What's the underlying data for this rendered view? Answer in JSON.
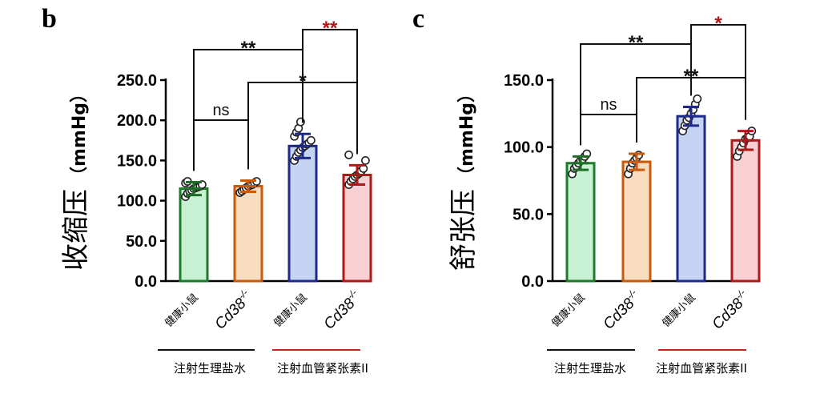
{
  "colors": {
    "bar_edges": [
      "#1e7a2a",
      "#c85a0a",
      "#1e2a8a",
      "#b01818"
    ],
    "bar_fills": [
      "#c8f0d2",
      "#f8dcc0",
      "#c4d4f2",
      "#f8d0d4"
    ],
    "error_bars": [
      "#1e6e28",
      "#c85a0a",
      "#1e2a8a",
      "#b01818"
    ],
    "sig_black": "#111111",
    "sig_red": "#b01818",
    "saline_line": "#111111",
    "angII_line": "#d02020"
  },
  "chart_data": [
    {
      "type": "bar",
      "panel_label": "b",
      "ylabel_cn": "收缩压",
      "ylabel_unit": "（mmHg）",
      "ylim": [
        0,
        250
      ],
      "yticks": [
        0,
        50,
        100,
        150,
        200,
        250
      ],
      "ytick_labels": [
        "0.0",
        "50.0",
        "100.0",
        "150.0",
        "200.0",
        "250.0"
      ],
      "categories": [
        "健康小鼠",
        "Cd38-/-",
        "健康小鼠",
        "Cd38-/-"
      ],
      "category_italic": [
        false,
        true,
        false,
        true
      ],
      "groups": [
        {
          "label": "注射生理盐水",
          "line_color": "saline"
        },
        {
          "label": "注射血管紧张素II",
          "line_color": "angII"
        }
      ],
      "values": [
        115,
        118,
        168,
        132
      ],
      "errors": [
        8,
        7,
        15,
        12
      ],
      "points": [
        [
          105,
          109,
          112,
          113,
          115,
          116,
          117,
          118,
          120,
          122,
          124
        ],
        [
          110,
          112,
          114,
          116,
          118,
          119,
          120,
          122,
          124
        ],
        [
          150,
          155,
          160,
          163,
          166,
          168,
          170,
          172,
          175,
          180,
          185,
          190,
          198
        ],
        [
          120,
          124,
          127,
          130,
          132,
          134,
          137,
          140,
          150,
          157
        ]
      ],
      "comparisons": [
        {
          "bars": [
            0,
            1
          ],
          "label": "ns",
          "color": "sig_black"
        },
        {
          "bars": [
            0,
            2
          ],
          "label": "**",
          "color": "sig_black"
        },
        {
          "bars": [
            1,
            3
          ],
          "label": "*",
          "color": "sig_black"
        },
        {
          "bars": [
            2,
            3
          ],
          "label": "**",
          "color": "sig_red"
        }
      ]
    },
    {
      "type": "bar",
      "panel_label": "c",
      "ylabel_cn": "舒张压",
      "ylabel_unit": "（mmHg）",
      "ylim": [
        0,
        150
      ],
      "yticks": [
        0,
        50,
        100,
        150
      ],
      "ytick_labels": [
        "0.0",
        "50.0",
        "100.0",
        "150.0"
      ],
      "categories": [
        "健康小鼠",
        "Cd38-/-",
        "健康小鼠",
        "Cd38-/-"
      ],
      "category_italic": [
        false,
        true,
        false,
        true
      ],
      "groups": [
        {
          "label": "注射生理盐水",
          "line_color": "saline"
        },
        {
          "label": "注射血管紧张素II",
          "line_color": "angII"
        }
      ],
      "values": [
        88,
        89,
        123,
        105
      ],
      "errors": [
        5,
        6,
        7,
        7
      ],
      "points": [
        [
          80,
          84,
          86,
          88,
          90,
          91,
          93,
          95
        ],
        [
          80,
          84,
          88,
          90,
          92,
          94
        ],
        [
          112,
          116,
          120,
          122,
          125,
          128,
          132,
          136
        ],
        [
          93,
          97,
          100,
          103,
          106,
          107,
          108,
          112
        ]
      ],
      "comparisons": [
        {
          "bars": [
            0,
            1
          ],
          "label": "ns",
          "color": "sig_black"
        },
        {
          "bars": [
            0,
            2
          ],
          "label": "**",
          "color": "sig_black"
        },
        {
          "bars": [
            1,
            3
          ],
          "label": "**",
          "color": "sig_black"
        },
        {
          "bars": [
            2,
            3
          ],
          "label": "*",
          "color": "sig_red"
        }
      ]
    }
  ]
}
